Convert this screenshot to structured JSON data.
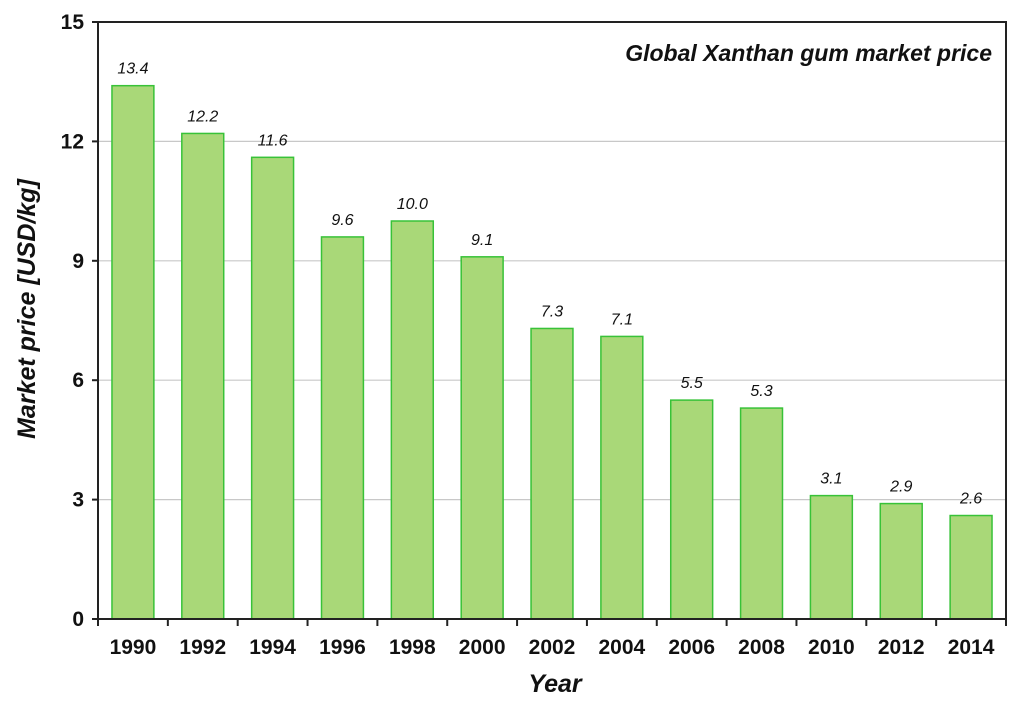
{
  "chart_data": {
    "type": "bar",
    "title": "Global Xanthan gum market price",
    "xlabel": "Year",
    "ylabel": "Market price [USD/kg]",
    "categories": [
      "1990",
      "1992",
      "1994",
      "1996",
      "1998",
      "2000",
      "2002",
      "2004",
      "2006",
      "2008",
      "2010",
      "2012",
      "2014"
    ],
    "values": [
      13.4,
      12.2,
      11.6,
      9.6,
      10.0,
      9.1,
      7.3,
      7.1,
      5.5,
      5.3,
      3.1,
      2.9,
      2.6
    ],
    "value_labels": [
      "13.4",
      "12.2",
      "11.6",
      "9.6",
      "10.0",
      "9.1",
      "7.3",
      "7.1",
      "5.5",
      "5.3",
      "3.1",
      "2.9",
      "2.6"
    ],
    "yticks": [
      "0",
      "3",
      "6",
      "9",
      "12",
      "15"
    ],
    "ylim": [
      0,
      15
    ],
    "grid": true,
    "legend": "none",
    "colors": {
      "bar_fill": "#a9d878",
      "bar_stroke": "#38c238",
      "grid": "#c8c8c8",
      "axis": "#222222"
    }
  }
}
